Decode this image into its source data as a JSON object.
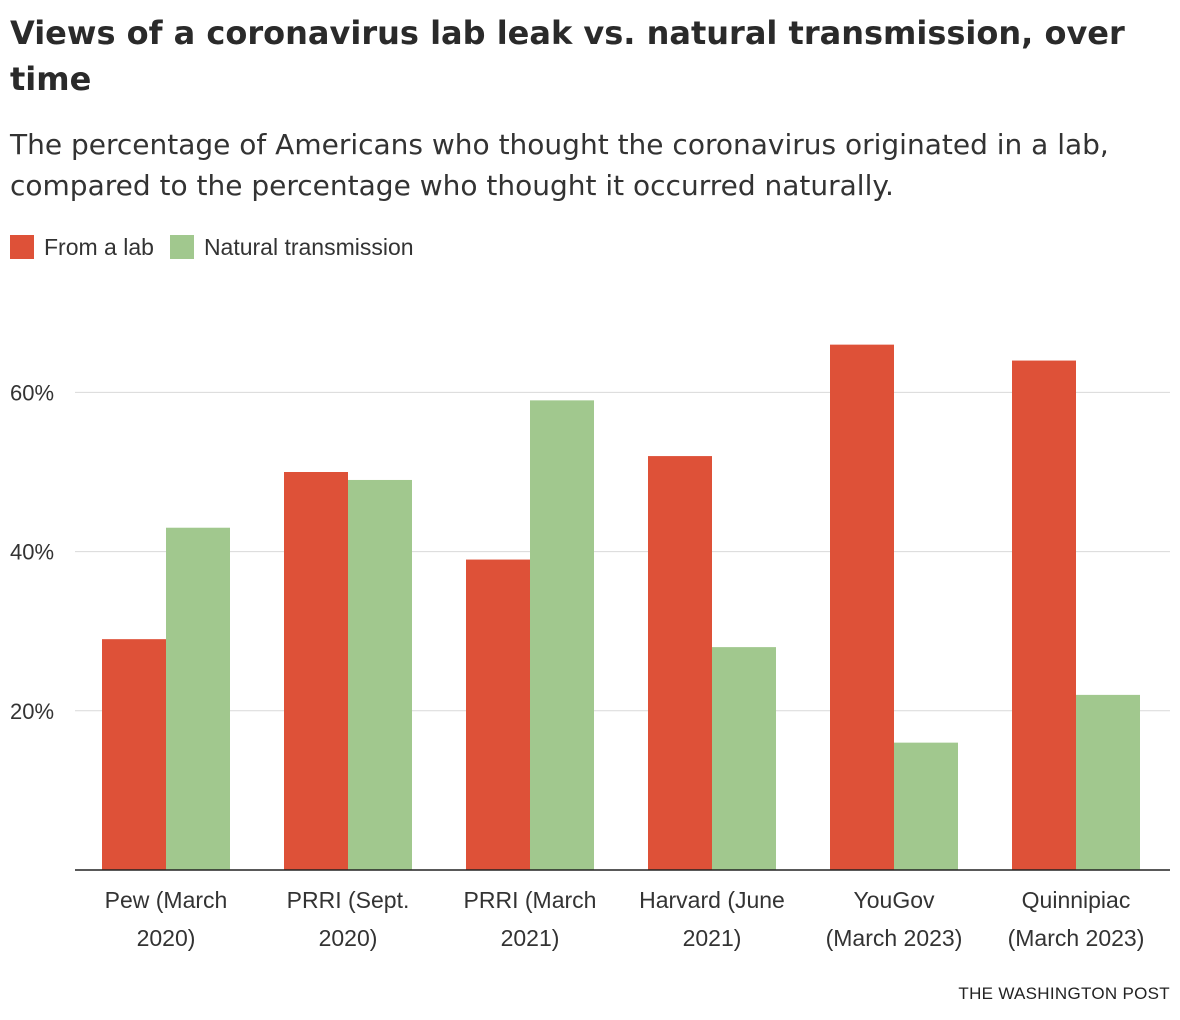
{
  "header": {
    "title": "Views of a coronavirus lab leak vs. natural transmission, over time",
    "subtitle": "The percentage of Americans who thought the coronavirus originated in a lab, compared to the percentage who thought it occurred naturally."
  },
  "legend": {
    "items": [
      {
        "label": "From a lab",
        "color": "#de5138"
      },
      {
        "label": "Natural transmission",
        "color": "#a1c88e"
      }
    ]
  },
  "chart_data": {
    "type": "bar",
    "categories": [
      [
        "Pew (March",
        "2020)"
      ],
      [
        "PRRI (Sept.",
        "2020)"
      ],
      [
        "PRRI (March",
        "2021)"
      ],
      [
        "Harvard (June",
        "2021)"
      ],
      [
        "YouGov",
        "(March 2023)"
      ],
      [
        "Quinnipiac",
        "(March 2023)"
      ]
    ],
    "series": [
      {
        "name": "From a lab",
        "color": "#de5138",
        "values": [
          29,
          50,
          39,
          52,
          66,
          64
        ]
      },
      {
        "name": "Natural transmission",
        "color": "#a1c88e",
        "values": [
          43,
          49,
          59,
          28,
          16,
          22
        ]
      }
    ],
    "yticks": [
      20,
      40,
      60
    ],
    "ytick_labels": [
      "20%",
      "40%",
      "60%"
    ],
    "ylim": [
      0,
      70
    ],
    "grid": true,
    "legend_position": "top-left"
  },
  "footer": {
    "credit": "THE WASHINGTON POST"
  }
}
